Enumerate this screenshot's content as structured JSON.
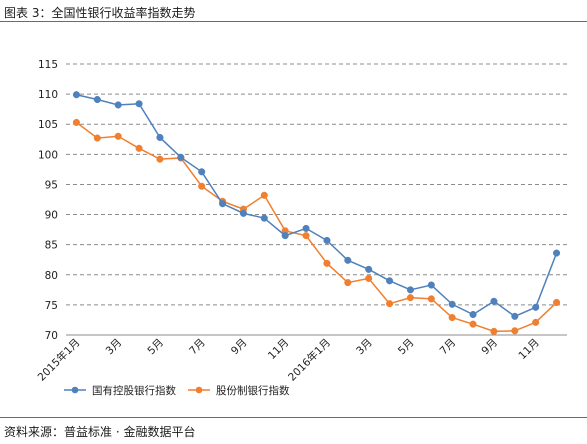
{
  "caption": "图表 3：全国性银行收益率指数走势",
  "source": "资料来源：普益标准 · 金融数据平台",
  "colors": {
    "series1": "#4f81bd",
    "series2": "#f07f2f",
    "grid": "#8c8c8c",
    "axis": "#8c8c8c"
  },
  "chart_data": {
    "type": "line",
    "title": "",
    "xlabel": "",
    "ylabel": "",
    "ylim": [
      70,
      115
    ],
    "yticks": [
      70,
      75,
      80,
      85,
      90,
      95,
      100,
      105,
      110,
      115
    ],
    "grid": true,
    "legend_position": "bottom-center",
    "x": [
      "2015年1月",
      "2015年2月",
      "2015年3月",
      "2015年4月",
      "2015年5月",
      "2015年6月",
      "2015年7月",
      "2015年8月",
      "2015年9月",
      "2015年10月",
      "2015年11月",
      "2015年12月",
      "2016年1月",
      "2016年2月",
      "2016年3月",
      "2016年4月",
      "2016年5月",
      "2016年6月",
      "2016年7月",
      "2016年8月",
      "2016年9月",
      "2016年10月",
      "2016年11月",
      "2016年12月"
    ],
    "tick_labels": [
      "2015年1月",
      "",
      "3月",
      "",
      "5月",
      "",
      "7月",
      "",
      "9月",
      "",
      "11月",
      "",
      "2016年1月",
      "",
      "3月",
      "",
      "5月",
      "",
      "7月",
      "",
      "9月",
      "",
      "11月",
      ""
    ],
    "series": [
      {
        "name": "国有控股银行指数",
        "values": [
          109.9,
          109.1,
          108.2,
          108.4,
          102.8,
          99.5,
          97.1,
          91.8,
          90.2,
          89.4,
          86.5,
          87.7,
          85.7,
          82.4,
          80.9,
          79.0,
          77.5,
          78.3,
          75.1,
          73.4,
          75.6,
          73.1,
          74.6,
          83.6
        ]
      },
      {
        "name": "股份制银行指数",
        "values": [
          105.3,
          102.7,
          103.0,
          101.0,
          99.2,
          99.4,
          94.7,
          92.2,
          90.9,
          93.2,
          87.3,
          86.5,
          81.9,
          78.7,
          79.4,
          75.2,
          76.2,
          76.0,
          72.9,
          71.8,
          70.6,
          70.7,
          72.1,
          75.4
        ]
      }
    ]
  }
}
